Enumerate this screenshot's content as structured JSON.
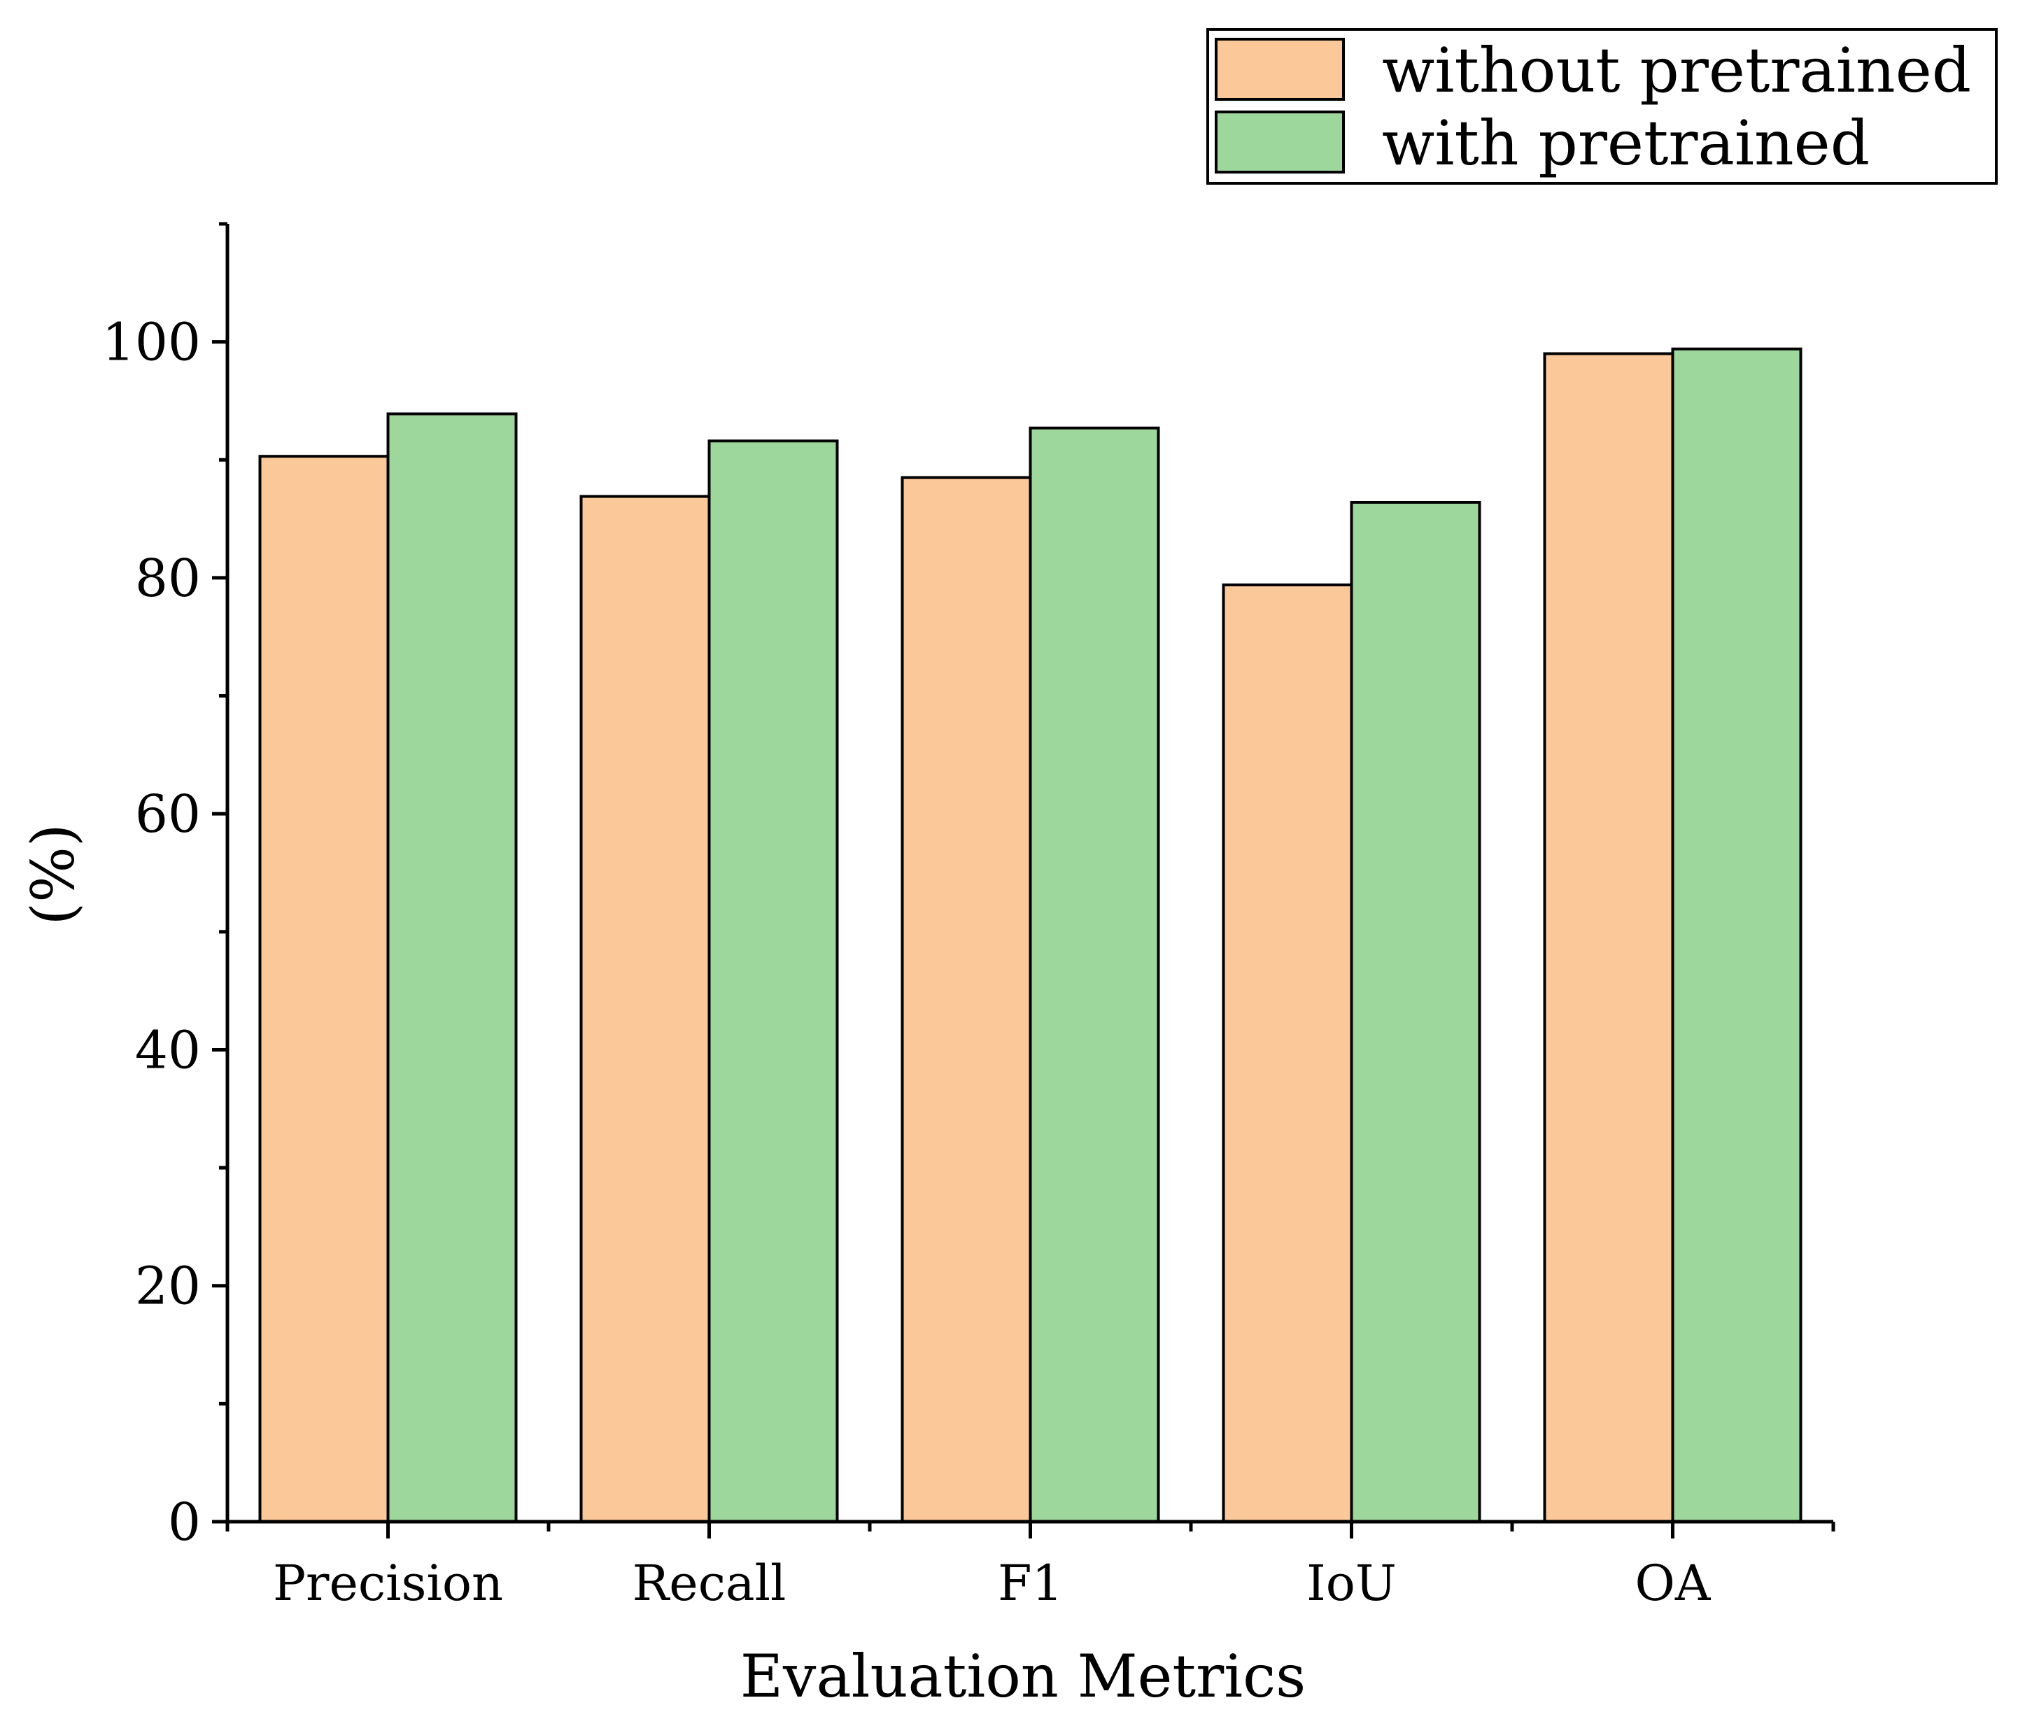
{
  "chart_data": {
    "type": "bar",
    "title": "",
    "xlabel": "Evaluation Metrics",
    "ylabel": "(%)",
    "ylim": [
      0,
      110
    ],
    "yticks": [
      0,
      20,
      40,
      60,
      80,
      100
    ],
    "ytick_labels": [
      "0",
      "20",
      "40",
      "60",
      "80",
      "100"
    ],
    "minor_ytick_step": 10,
    "grid": false,
    "legend_position": "top-right",
    "categories": [
      "Precision",
      "Recall",
      "F1",
      "IoU",
      "OA"
    ],
    "series": [
      {
        "name": "without pretrained",
        "color": "#FBC999",
        "values": [
          90.3,
          86.9,
          88.5,
          79.4,
          99.0
        ]
      },
      {
        "name": "with pretrained",
        "color": "#9ED79B",
        "values": [
          93.9,
          91.6,
          92.7,
          86.4,
          99.4
        ]
      }
    ]
  }
}
